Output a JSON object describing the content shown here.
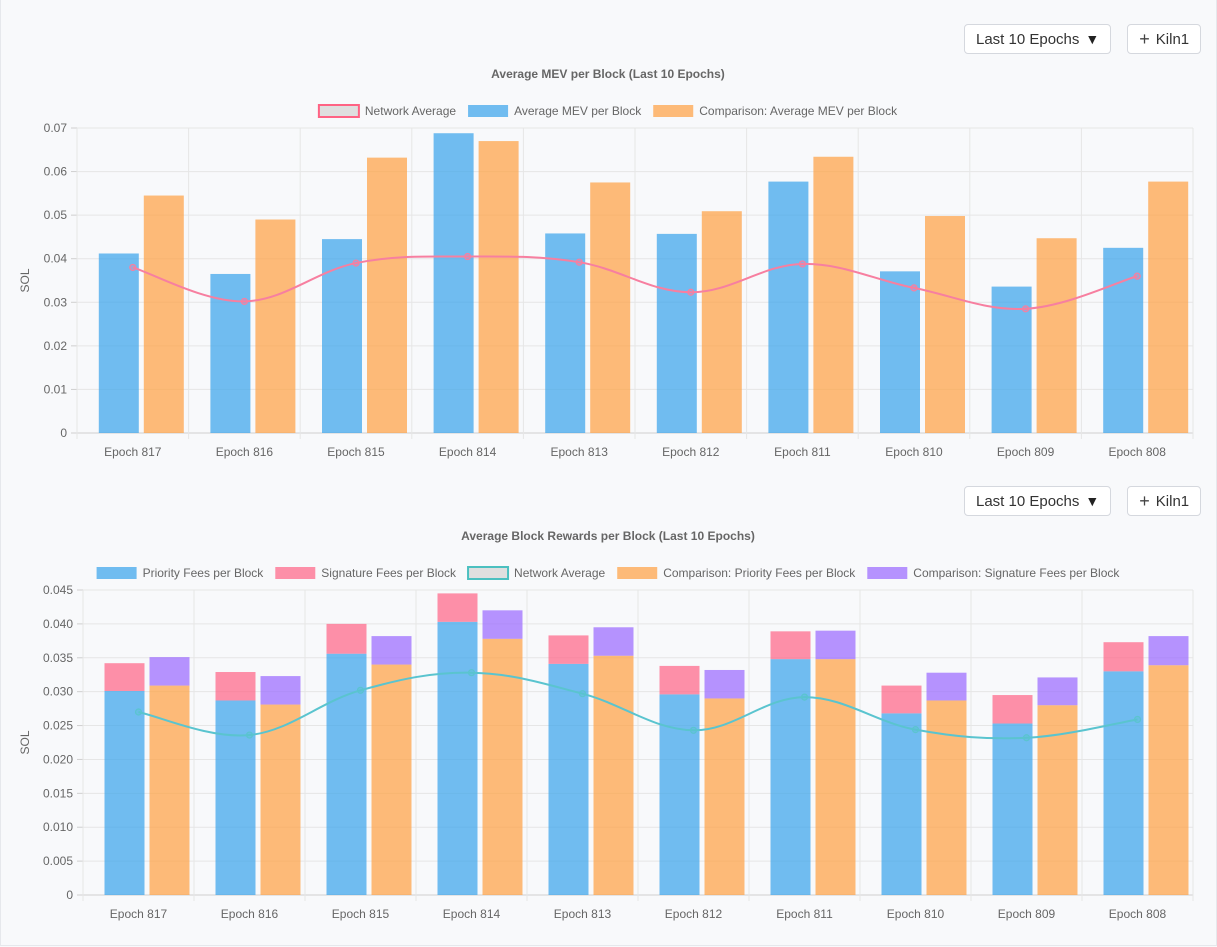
{
  "controls": {
    "range_label": "Last 10 Epochs",
    "range_caret": "▼",
    "add_icon": "+",
    "validator_label": "Kiln1"
  },
  "colors": {
    "blue": "#36a2eb",
    "orange": "#ff9f40",
    "pink": "#ff6384",
    "purple": "#9966ff",
    "teal": "#4bc0c0",
    "line_pink": "#f77fa0",
    "line_teal": "#5ac4cf"
  },
  "chart_data": [
    {
      "type": "bar",
      "title": "Average MEV per Block (Last 10 Epochs)",
      "ylabel": "SOL",
      "ylim": [
        0,
        0.07
      ],
      "yticks": [
        "0",
        "0.01",
        "0.02",
        "0.03",
        "0.04",
        "0.05",
        "0.06",
        "0.07"
      ],
      "grid": true,
      "legend_position": "top",
      "categories": [
        "Epoch 817",
        "Epoch 816",
        "Epoch 815",
        "Epoch 814",
        "Epoch 813",
        "Epoch 812",
        "Epoch 811",
        "Epoch 810",
        "Epoch 809",
        "Epoch 808"
      ],
      "series": [
        {
          "name": "Network Average",
          "kind": "line",
          "color": "pink",
          "values": [
            0.038,
            0.0302,
            0.039,
            0.0405,
            0.0392,
            0.0323,
            0.0388,
            0.0333,
            0.0285,
            0.036
          ]
        },
        {
          "name": "Average MEV per Block",
          "kind": "bar",
          "color": "blue",
          "values": [
            0.0412,
            0.0365,
            0.0445,
            0.0688,
            0.0458,
            0.0457,
            0.0577,
            0.0371,
            0.0336,
            0.0425
          ]
        },
        {
          "name": "Comparison: Average MEV per Block",
          "kind": "bar",
          "color": "orange",
          "values": [
            0.0545,
            0.049,
            0.0632,
            0.067,
            0.0575,
            0.0509,
            0.0634,
            0.0498,
            0.0447,
            0.0577
          ]
        }
      ]
    },
    {
      "type": "bar",
      "stacked": true,
      "title": "Average Block Rewards per Block (Last 10 Epochs)",
      "ylabel": "SOL",
      "ylim": [
        0,
        0.045
      ],
      "yticks": [
        "0",
        "0.005",
        "0.010",
        "0.015",
        "0.020",
        "0.025",
        "0.030",
        "0.035",
        "0.040",
        "0.045"
      ],
      "grid": true,
      "legend_position": "top",
      "categories": [
        "Epoch 817",
        "Epoch 816",
        "Epoch 815",
        "Epoch 814",
        "Epoch 813",
        "Epoch 812",
        "Epoch 811",
        "Epoch 810",
        "Epoch 809",
        "Epoch 808"
      ],
      "series": [
        {
          "name": "Priority Fees per Block",
          "kind": "bar",
          "stack": "a",
          "color": "blue",
          "values": [
            0.0301,
            0.0287,
            0.0356,
            0.0403,
            0.0341,
            0.0296,
            0.0348,
            0.0268,
            0.0253,
            0.033
          ]
        },
        {
          "name": "Signature Fees per Block",
          "kind": "bar",
          "stack": "a",
          "color": "pink",
          "values": [
            0.0041,
            0.0042,
            0.0044,
            0.0042,
            0.0042,
            0.0042,
            0.0041,
            0.0041,
            0.0042,
            0.0043
          ]
        },
        {
          "name": "Network Average",
          "kind": "line",
          "color": "teal",
          "values": [
            0.027,
            0.0236,
            0.0302,
            0.0328,
            0.0297,
            0.0243,
            0.0292,
            0.0244,
            0.0232,
            0.0259
          ]
        },
        {
          "name": "Comparison: Priority Fees per Block",
          "kind": "bar",
          "stack": "b",
          "color": "orange",
          "values": [
            0.0309,
            0.0281,
            0.034,
            0.0378,
            0.0353,
            0.029,
            0.0348,
            0.0287,
            0.028,
            0.0339
          ]
        },
        {
          "name": "Comparison: Signature Fees per Block",
          "kind": "bar",
          "stack": "b",
          "color": "purple",
          "values": [
            0.0042,
            0.0042,
            0.0042,
            0.0042,
            0.0042,
            0.0042,
            0.0042,
            0.0041,
            0.0041,
            0.0043
          ]
        }
      ]
    }
  ]
}
